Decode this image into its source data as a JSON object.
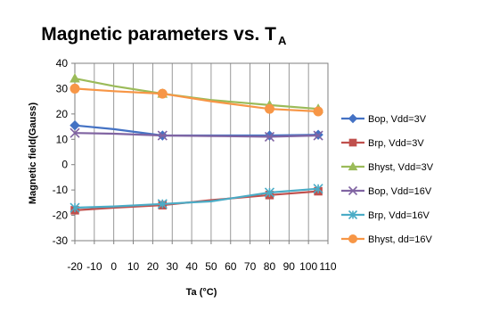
{
  "chart_data": {
    "type": "line",
    "title": "Magnetic parameters vs. T",
    "title_subscript": "A",
    "xlabel": "Ta (°C)",
    "ylabel": "Magnetic field(Gauss)",
    "xlim": [
      -20,
      110
    ],
    "ylim": [
      -30,
      40
    ],
    "xticks": [
      -20,
      -10,
      0,
      10,
      20,
      30,
      40,
      50,
      60,
      70,
      80,
      90,
      100,
      110
    ],
    "yticks": [
      -30,
      -20,
      -10,
      0,
      10,
      20,
      30,
      40
    ],
    "grid": "vertical",
    "legend_position": "right",
    "series": [
      {
        "name": "Bop, Vdd=3V",
        "color": "#4472c4",
        "marker": "diamond",
        "points": [
          [
            -20,
            15.5
          ],
          [
            0,
            14
          ],
          [
            25,
            11.5
          ],
          [
            50,
            11.5
          ],
          [
            80,
            11.5
          ],
          [
            105,
            11.8
          ]
        ],
        "marker_x": [
          -20,
          25,
          80,
          105
        ]
      },
      {
        "name": "Brp, Vdd=3V",
        "color": "#c0504d",
        "marker": "square",
        "points": [
          [
            -20,
            -18
          ],
          [
            0,
            -17
          ],
          [
            25,
            -16
          ],
          [
            50,
            -14
          ],
          [
            80,
            -12
          ],
          [
            105,
            -10.5
          ]
        ],
        "marker_x": [
          -20,
          25,
          80,
          105
        ]
      },
      {
        "name": "Bhyst, Vdd=3V",
        "color": "#9bbb59",
        "marker": "triangle",
        "points": [
          [
            -20,
            34
          ],
          [
            0,
            31
          ],
          [
            25,
            28
          ],
          [
            50,
            25.5
          ],
          [
            80,
            23.5
          ],
          [
            105,
            22
          ]
        ],
        "marker_x": [
          -20,
          25,
          80,
          105
        ]
      },
      {
        "name": "Bop, Vdd=16V",
        "color": "#8064a2",
        "marker": "x",
        "points": [
          [
            -20,
            12.5
          ],
          [
            0,
            12.2
          ],
          [
            25,
            11.5
          ],
          [
            50,
            11.3
          ],
          [
            80,
            11
          ],
          [
            105,
            11.5
          ]
        ],
        "marker_x": [
          -20,
          25,
          80,
          105
        ]
      },
      {
        "name": "Brp, Vdd=16V",
        "color": "#4bacc6",
        "marker": "star",
        "points": [
          [
            -20,
            -17
          ],
          [
            0,
            -16.5
          ],
          [
            25,
            -15.5
          ],
          [
            50,
            -14.5
          ],
          [
            80,
            -11
          ],
          [
            105,
            -9.5
          ]
        ],
        "marker_x": [
          -20,
          25,
          80,
          105
        ]
      },
      {
        "name": "Bhyst, dd=16V",
        "color": "#f79646",
        "marker": "circle",
        "points": [
          [
            -20,
            30
          ],
          [
            0,
            29
          ],
          [
            25,
            28
          ],
          [
            50,
            25
          ],
          [
            80,
            22
          ],
          [
            105,
            21
          ]
        ],
        "marker_x": [
          -20,
          25,
          80,
          105
        ]
      }
    ]
  }
}
